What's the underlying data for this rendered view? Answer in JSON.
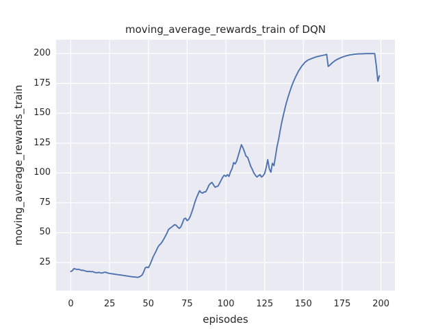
{
  "chart_data": {
    "type": "line",
    "title": "moving_average_rewards_train of DQN",
    "xlabel": "episodes",
    "ylabel": "moving_average_rewards_train",
    "x_ticks": [
      0,
      25,
      50,
      75,
      100,
      125,
      150,
      175,
      200
    ],
    "y_ticks": [
      25,
      50,
      75,
      100,
      125,
      150,
      175,
      200
    ],
    "xlim": [
      -9.5,
      209.0
    ],
    "ylim": [
      1.5,
      211.5
    ],
    "grid": true,
    "legend": "none",
    "figure_bg": "#ffffff",
    "plot_bg": "#eaeaf2",
    "grid_color": "#ffffff",
    "line_color": "#4c72b0",
    "text_color": "#262626",
    "series": [
      {
        "name": "moving_average_rewards_train",
        "x_start": 0,
        "x_step": 1,
        "y": [
          17.5,
          18.2,
          20.0,
          19.6,
          19.2,
          19.4,
          18.9,
          18.4,
          18.6,
          18.1,
          17.7,
          17.4,
          17.7,
          17.3,
          17.5,
          16.9,
          16.6,
          16.5,
          16.8,
          16.4,
          16.2,
          16.6,
          17.0,
          16.6,
          16.2,
          15.9,
          15.7,
          15.5,
          15.3,
          15.1,
          14.9,
          14.7,
          14.6,
          14.4,
          14.2,
          14.0,
          13.8,
          13.6,
          13.4,
          13.2,
          13.0,
          12.9,
          12.8,
          12.6,
          12.9,
          13.6,
          14.6,
          17.2,
          20.6,
          21.2,
          20.7,
          23.2,
          26.2,
          29.6,
          32.2,
          34.6,
          37.6,
          39.6,
          40.7,
          42.6,
          44.7,
          47.2,
          49.7,
          52.6,
          53.7,
          54.7,
          55.7,
          56.7,
          56.1,
          54.6,
          53.6,
          55.1,
          58.1,
          61.6,
          62.1,
          60.1,
          61.1,
          63.6,
          67.1,
          71.1,
          75.6,
          79.1,
          82.1,
          85.1,
          83.6,
          83.1,
          84.1,
          84.2,
          86.6,
          89.6,
          91.1,
          92.1,
          90.1,
          88.1,
          88.6,
          89.1,
          91.6,
          94.1,
          96.6,
          98.1,
          97.1,
          98.6,
          97.1,
          101.1,
          103.6,
          108.6,
          107.6,
          110.1,
          114.6,
          119.1,
          123.6,
          121.1,
          117.6,
          114.1,
          113.1,
          109.6,
          105.6,
          103.1,
          100.1,
          98.1,
          96.6,
          97.6,
          98.6,
          96.6,
          97.6,
          99.6,
          104.6,
          111.1,
          103.6,
          100.6,
          108.1,
          106.1,
          114.1,
          122.1,
          128.1,
          135.6,
          142.1,
          148.1,
          153.6,
          158.6,
          163.1,
          167.1,
          171.1,
          174.6,
          177.6,
          180.6,
          183.1,
          185.6,
          187.6,
          189.6,
          191.1,
          192.6,
          193.6,
          194.6,
          195.1,
          195.6,
          196.1,
          196.6,
          197.1,
          197.4,
          197.7,
          198.0,
          198.3,
          198.6,
          198.9,
          199.3,
          189.2,
          190.2,
          191.5,
          192.6,
          193.6,
          194.5,
          195.2,
          195.8,
          196.4,
          196.9,
          197.4,
          197.8,
          198.2,
          198.5,
          198.8,
          199.0,
          199.2,
          199.4,
          199.5,
          199.6,
          199.7,
          199.7,
          199.8,
          199.8,
          199.9,
          199.9,
          199.9,
          199.9,
          199.9,
          199.9,
          199.9,
          190.0,
          176.8,
          181.3
        ]
      }
    ]
  }
}
